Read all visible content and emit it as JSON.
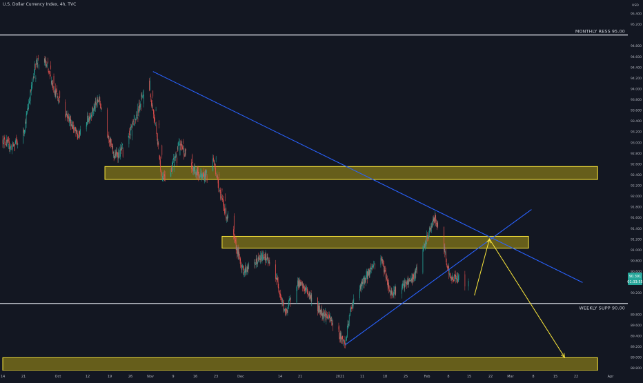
{
  "header": {
    "title": "U.S. Dollar Currency Index, 4h, TVC"
  },
  "currency": "USD",
  "colors": {
    "background": "#131722",
    "up": "#26a69a",
    "down": "#ef5350",
    "zone_fill": "#8a7e18",
    "zone_border": "#ffeb3b",
    "trendline": "#2962ff",
    "projection": "#ffeb3b",
    "level_line": "#d1d4dc",
    "price_badge": "#26a69a"
  },
  "chart_data": {
    "type": "candlestick",
    "title": "U.S. Dollar Currency Index, 4h, TVC",
    "ylim": [
      88.75,
      95.6
    ],
    "y_ticks": [
      88.8,
      89.0,
      89.2,
      89.4,
      89.6,
      89.8,
      90.0,
      90.2,
      90.4,
      90.6,
      90.8,
      91.0,
      91.2,
      91.4,
      91.6,
      91.8,
      92.0,
      92.2,
      92.4,
      92.6,
      92.8,
      93.0,
      93.2,
      93.4,
      93.6,
      93.8,
      94.0,
      94.2,
      94.4,
      94.6,
      94.8,
      95.0,
      95.2,
      95.4
    ],
    "x_ticks": [
      "14",
      "21",
      "Oct",
      "12",
      "19",
      "26",
      "Nov",
      "9",
      "16",
      "23",
      "Dec",
      "14",
      "21",
      "2021",
      "11",
      "18",
      "25",
      "Feb",
      "8",
      "15",
      "22",
      "Mar",
      "8",
      "15",
      "22",
      "Apr"
    ],
    "price_path": [
      {
        "date": "2020-09-14",
        "value": 93.05
      },
      {
        "date": "2020-09-17",
        "value": 92.9
      },
      {
        "date": "2020-09-21",
        "value": 93.2
      },
      {
        "date": "2020-09-25",
        "value": 94.5
      },
      {
        "date": "2020-09-28",
        "value": 94.5
      },
      {
        "date": "2020-10-02",
        "value": 93.85
      },
      {
        "date": "2020-10-06",
        "value": 93.45
      },
      {
        "date": "2020-10-09",
        "value": 93.1
      },
      {
        "date": "2020-10-14",
        "value": 93.6
      },
      {
        "date": "2020-10-16",
        "value": 93.8
      },
      {
        "date": "2020-10-21",
        "value": 92.75
      },
      {
        "date": "2020-10-23",
        "value": 92.8
      },
      {
        "date": "2020-10-28",
        "value": 93.4
      },
      {
        "date": "2020-11-01",
        "value": 94.2
      },
      {
        "date": "2020-11-04",
        "value": 93.3
      },
      {
        "date": "2020-11-06",
        "value": 92.3
      },
      {
        "date": "2020-11-09",
        "value": 92.5
      },
      {
        "date": "2020-11-12",
        "value": 93.0
      },
      {
        "date": "2020-11-16",
        "value": 92.5
      },
      {
        "date": "2020-11-20",
        "value": 92.35
      },
      {
        "date": "2020-11-23",
        "value": 92.7
      },
      {
        "date": "2020-11-26",
        "value": 91.9
      },
      {
        "date": "2020-12-01",
        "value": 91.0
      },
      {
        "date": "2020-12-03",
        "value": 90.6
      },
      {
        "date": "2020-12-07",
        "value": 90.75
      },
      {
        "date": "2020-12-10",
        "value": 90.9
      },
      {
        "date": "2020-12-14",
        "value": 90.5
      },
      {
        "date": "2020-12-17",
        "value": 89.8
      },
      {
        "date": "2020-12-21",
        "value": 90.4
      },
      {
        "date": "2020-12-24",
        "value": 90.25
      },
      {
        "date": "2020-12-28",
        "value": 89.9
      },
      {
        "date": "2021-01-01",
        "value": 89.7
      },
      {
        "date": "2021-01-06",
        "value": 89.25
      },
      {
        "date": "2021-01-08",
        "value": 89.95
      },
      {
        "date": "2021-01-12",
        "value": 90.4
      },
      {
        "date": "2021-01-15",
        "value": 90.7
      },
      {
        "date": "2021-01-18",
        "value": 90.85
      },
      {
        "date": "2021-01-21",
        "value": 90.2
      },
      {
        "date": "2021-01-25",
        "value": 90.3
      },
      {
        "date": "2021-01-29",
        "value": 90.5
      },
      {
        "date": "2021-02-01",
        "value": 91.0
      },
      {
        "date": "2021-02-04",
        "value": 91.5
      },
      {
        "date": "2021-02-05",
        "value": 91.58
      },
      {
        "date": "2021-02-08",
        "value": 91.0
      },
      {
        "date": "2021-02-10",
        "value": 90.45
      },
      {
        "date": "2021-02-12",
        "value": 90.5
      },
      {
        "date": "2021-02-15",
        "value": 90.39
      }
    ],
    "zones": [
      {
        "date_start": "2020-10-18",
        "date_end": "2021-03-31",
        "low": 92.31,
        "high": 92.55
      },
      {
        "date_start": "2020-11-26",
        "date_end": "2021-03-08",
        "low": 91.03,
        "high": 91.25
      },
      {
        "date_start": "2020-09-14",
        "date_end": "2021-03-31",
        "low": 88.75,
        "high": 88.99
      }
    ],
    "trendlines": [
      {
        "from": {
          "date": "2020-11-03",
          "value": 94.32
        },
        "to": {
          "date": "2021-03-26",
          "value": 90.39
        }
      },
      {
        "from": {
          "date": "2021-01-06",
          "value": 89.23
        },
        "to": {
          "date": "2021-03-09",
          "value": 91.75
        }
      }
    ],
    "projection": [
      {
        "date": "2021-02-18",
        "value": 90.15
      },
      {
        "date": "2021-02-23",
        "value": 91.2
      },
      {
        "date": "2021-03-20",
        "value": 89.0
      }
    ],
    "levels": [
      {
        "label": "MONTHLY RESS 95.00",
        "value": 95.0,
        "badge": "95.000"
      },
      {
        "label": "WEEKLY SUPP 90.00",
        "value": 90.0,
        "badge": "90.000"
      }
    ],
    "last_price": {
      "price": "90.391",
      "countdown": "01:33:55"
    }
  }
}
